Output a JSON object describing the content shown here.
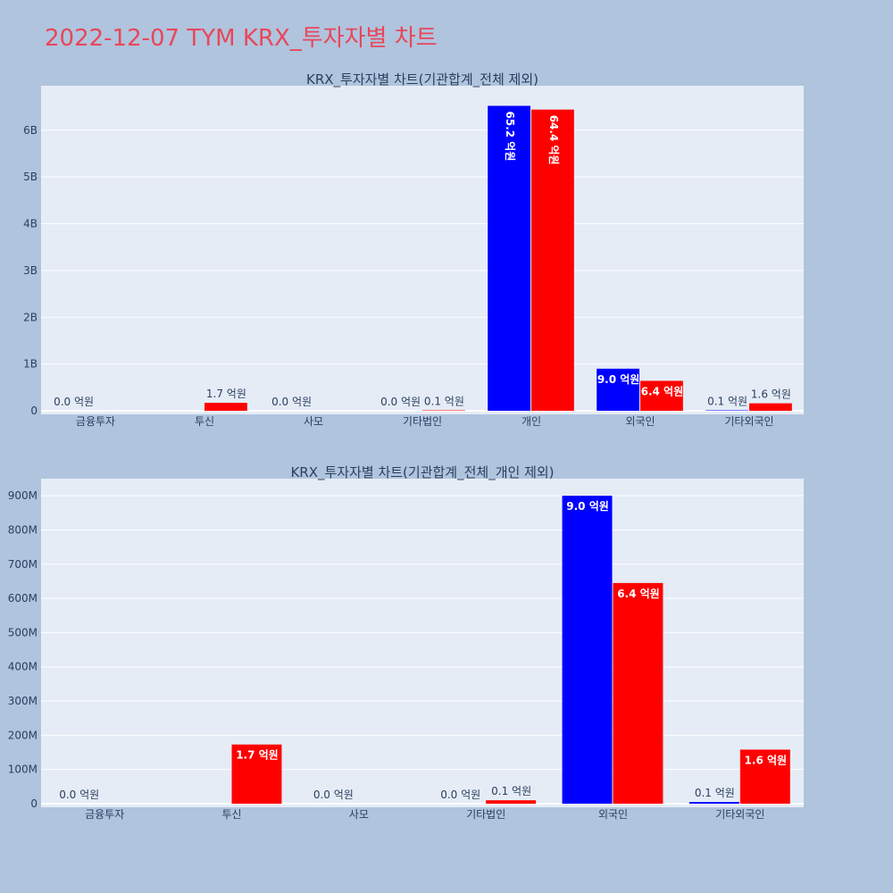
{
  "title": "2022-12-07 TYM KRX_투자자별 차트",
  "colors": {
    "buy": "#0000ff",
    "sell": "#ff0000",
    "plot_bg": "#e5ecf6",
    "page_bg": "#b0c4de",
    "title": "#e8475a"
  },
  "chart_data": [
    {
      "type": "bar",
      "title": "KRX_투자자별 차트(기관합계_전체 제외)",
      "categories": [
        "금융투자",
        "투신",
        "사모",
        "기타법인",
        "개인",
        "외국인",
        "기타외국인"
      ],
      "ylim": [
        0,
        6950000000
      ],
      "yticks": [
        0,
        1000000000,
        2000000000,
        3000000000,
        4000000000,
        5000000000,
        6000000000
      ],
      "ytick_labels": [
        "0",
        "1B",
        "2B",
        "3B",
        "4B",
        "5B",
        "6B"
      ],
      "series": [
        {
          "values": [
            0,
            0,
            0,
            0,
            6520000000,
            900000000,
            10000000
          ],
          "labels": [
            "0.0 억원",
            "",
            "0.0 억원",
            "0.0 억원",
            "65.2 억원",
            "9.0 억원",
            "0.1 억원"
          ]
        },
        {
          "values": [
            0,
            170000000,
            0,
            10000000,
            6440000000,
            640000000,
            160000000
          ],
          "labels": [
            "",
            "1.7 억원",
            "",
            "0.1 억원",
            "64.4 억원",
            "6.4 억원",
            "1.6 억원"
          ]
        }
      ],
      "grid": true
    },
    {
      "type": "bar",
      "title": "KRX_투자자별 차트(기관합계_전체_개인 제외)",
      "categories": [
        "금융투자",
        "투신",
        "사모",
        "기타법인",
        "외국인",
        "기타외국인"
      ],
      "ylim": [
        0,
        950000000
      ],
      "yticks": [
        0,
        100000000,
        200000000,
        300000000,
        400000000,
        500000000,
        600000000,
        700000000,
        800000000,
        900000000
      ],
      "ytick_labels": [
        "0",
        "100M",
        "200M",
        "300M",
        "400M",
        "500M",
        "600M",
        "700M",
        "800M",
        "900M"
      ],
      "series": [
        {
          "values": [
            0,
            0,
            0,
            0,
            900000000,
            5000000
          ],
          "labels": [
            "0.0 억원",
            "",
            "0.0 억원",
            "0.0 억원",
            "9.0 억원",
            "0.1 억원"
          ]
        },
        {
          "values": [
            0,
            173000000,
            0,
            10000000,
            645000000,
            158000000
          ],
          "labels": [
            "",
            "1.7 억원",
            "",
            "0.1 억원",
            "6.4 억원",
            "1.6 억원"
          ]
        }
      ],
      "grid": true
    }
  ]
}
